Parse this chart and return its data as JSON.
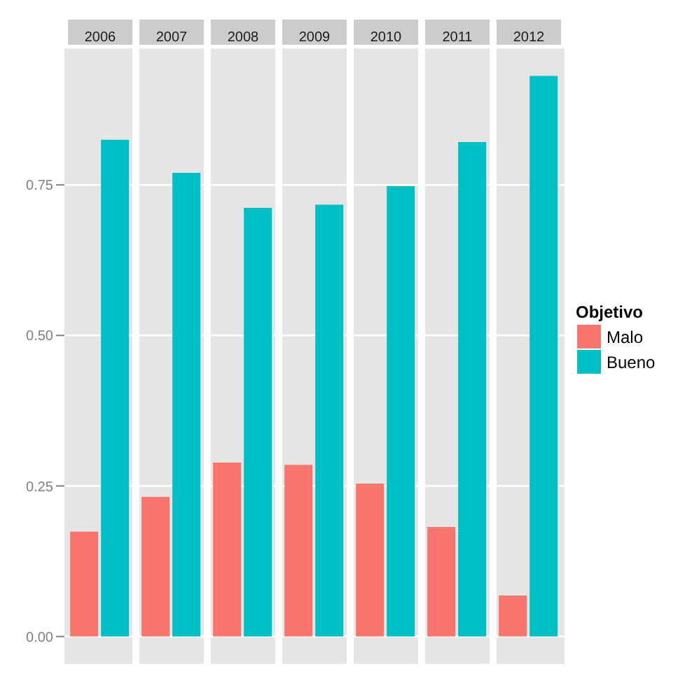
{
  "chart_data": {
    "type": "bar",
    "categories": [
      "2006",
      "2007",
      "2008",
      "2009",
      "2010",
      "2011",
      "2012"
    ],
    "legend_title": "Objetivo",
    "series": [
      {
        "name": "Malo",
        "color": "#f8766d",
        "values": [
          0.174,
          0.232,
          0.289,
          0.285,
          0.254,
          0.182,
          0.068
        ]
      },
      {
        "name": "Bueno",
        "color": "#00bfc4",
        "values": [
          0.825,
          0.77,
          0.712,
          0.717,
          0.748,
          0.821,
          0.931
        ]
      }
    ],
    "ylim": [
      -0.047,
      0.978
    ],
    "yticks": [
      {
        "value": 0,
        "label": "0.00"
      },
      {
        "value": 0.25,
        "label": "0.25"
      },
      {
        "value": 0.5,
        "label": "0.50"
      },
      {
        "value": 0.75,
        "label": "0.75"
      }
    ],
    "grid": true,
    "legend": "right"
  }
}
